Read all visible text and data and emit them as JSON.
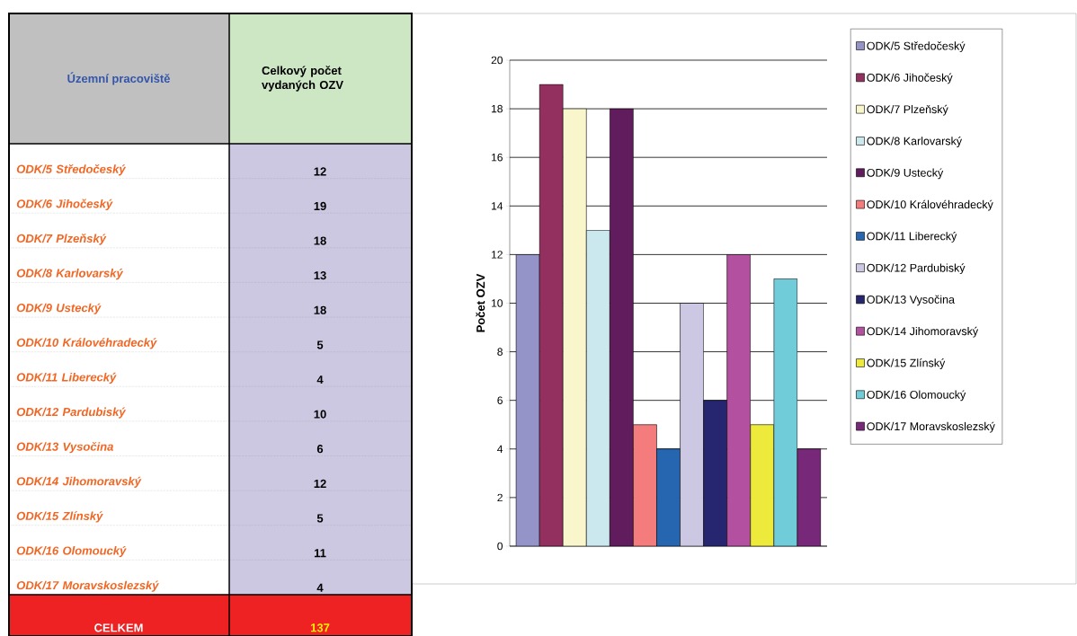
{
  "chart_data": [
    {
      "type": "other",
      "annotations": [
        "Územní pracoviště",
        "Celkový počet vydaných OZV",
        "CELKEM",
        "137"
      ],
      "categories": [
        "ODK/5 Středočeský",
        "ODK/6 Jihočeský",
        "ODK/7 Plzeňský",
        "ODK/8 Karlovarský",
        "ODK/9 Ustecký",
        "ODK/10 Královéhradecký",
        "ODK/11 Liberecký",
        "ODK/12 Pardubiský",
        "ODK/13 Vysočina",
        "ODK/14 Jihomoravský",
        "ODK/15 Zlínský",
        "ODK/16 Olomoucký",
        "ODK/17 Moravskoslezský"
      ],
      "values": [
        12,
        19,
        18,
        13,
        18,
        5,
        4,
        10,
        6,
        12,
        5,
        11,
        4
      ],
      "data_labels": true
    },
    {
      "type": "bar",
      "categories": [
        null
      ],
      "ylabel": "Počet OZV",
      "ylim": [
        0,
        20
      ],
      "yticks": [
        0,
        2,
        4,
        6,
        8,
        10,
        12,
        14,
        16,
        18,
        20
      ],
      "grid": "y",
      "legend": "right",
      "series": [
        {
          "name": "ODK/5 Středočeský",
          "color": "#9494c8",
          "values": [
            12
          ]
        },
        {
          "name": "ODK/6 Jihočeský",
          "color": "#943060",
          "values": [
            19
          ]
        },
        {
          "name": "ODK/7 Plzeňský",
          "color": "#faf6cc",
          "values": [
            18
          ]
        },
        {
          "name": "ODK/8 Karlovarský",
          "color": "#cce8ef",
          "values": [
            13
          ]
        },
        {
          "name": "ODK/9 Ustecký",
          "color": "#601c5c",
          "values": [
            18
          ]
        },
        {
          "name": "ODK/10 Královéhradecký",
          "color": "#f47c7c",
          "values": [
            5
          ]
        },
        {
          "name": "ODK/11 Liberecký",
          "color": "#2665b0",
          "values": [
            4
          ]
        },
        {
          "name": "ODK/12 Pardubiský",
          "color": "#ccc8e4",
          "values": [
            10
          ]
        },
        {
          "name": "ODK/13 Vysočina",
          "color": "#262670",
          "values": [
            6
          ]
        },
        {
          "name": "ODK/14 Jihomoravský",
          "color": "#b450a0",
          "values": [
            12
          ]
        },
        {
          "name": "ODK/15 Zlínský",
          "color": "#eeea3c",
          "values": [
            5
          ]
        },
        {
          "name": "ODK/16 Olomoucký",
          "color": "#70ccd8",
          "values": [
            11
          ]
        },
        {
          "name": "ODK/17 Moravskoslezský",
          "color": "#782878",
          "values": [
            4
          ]
        }
      ]
    }
  ]
}
